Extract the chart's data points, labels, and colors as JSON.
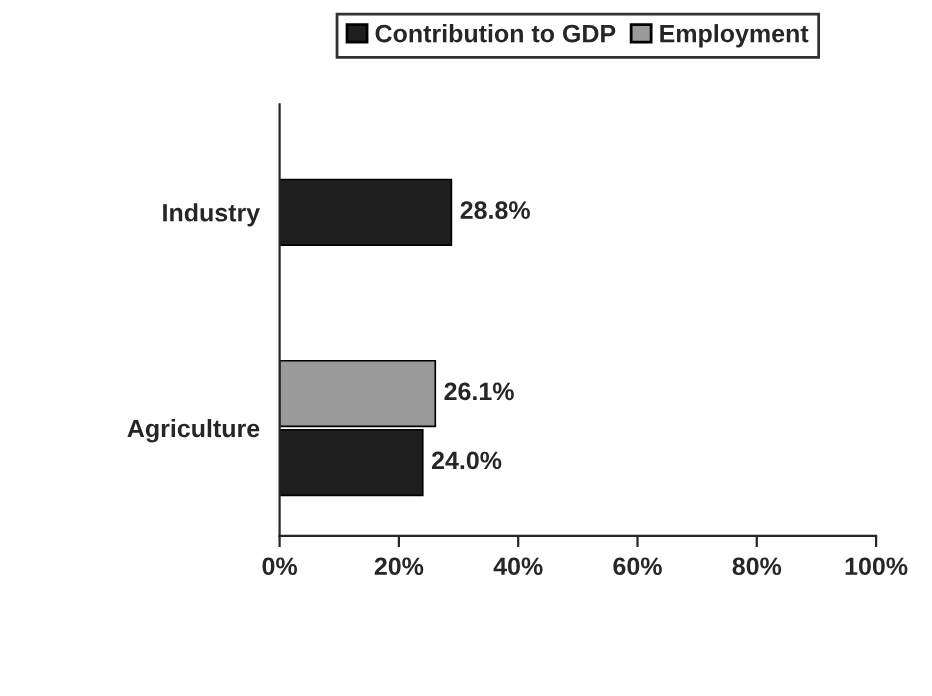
{
  "chart_data": {
    "type": "bar",
    "orientation": "horizontal",
    "categories": [
      "Industry",
      "Agriculture"
    ],
    "series": [
      {
        "name": "Contribution to GDP",
        "color": "#1e1e1e",
        "values": [
          28.8,
          24.0
        ],
        "value_labels": [
          "28.8%",
          "24.0%"
        ]
      },
      {
        "name": "Employment",
        "color": "#9a9a9a",
        "values": [
          null,
          26.1
        ],
        "value_labels": [
          null,
          "26.1%"
        ]
      }
    ],
    "xlim": [
      0,
      100
    ],
    "xticks": [
      {
        "value": 0,
        "label": "0%"
      },
      {
        "value": 20,
        "label": "20%"
      },
      {
        "value": 40,
        "label": "40%"
      },
      {
        "value": 60,
        "label": "60%"
      },
      {
        "value": 80,
        "label": "80%"
      },
      {
        "value": 100,
        "label": "100%"
      }
    ],
    "legend": "top",
    "grid": false
  }
}
